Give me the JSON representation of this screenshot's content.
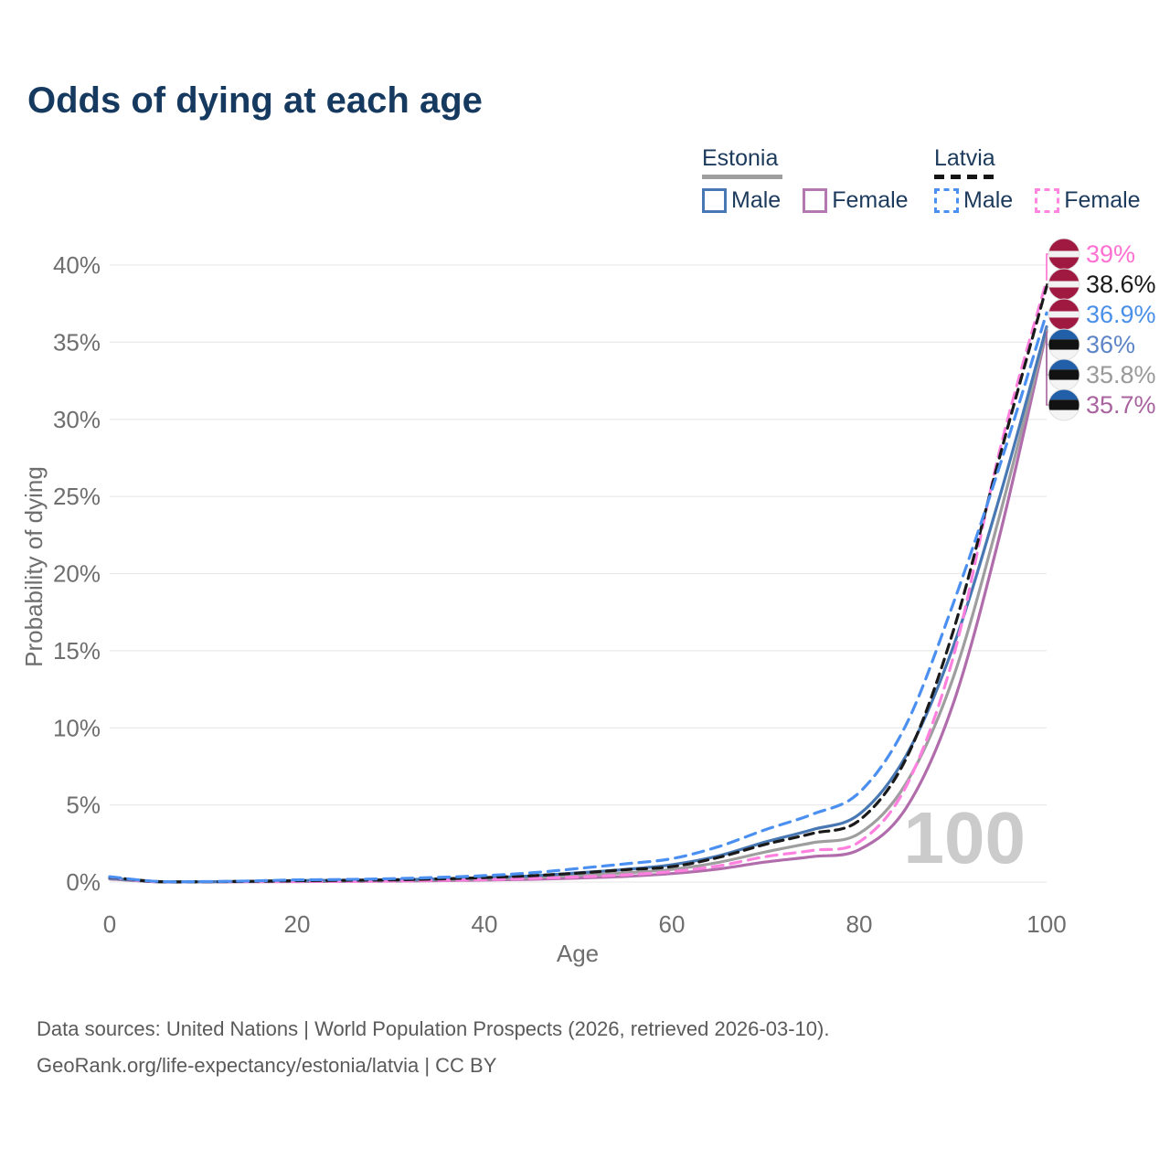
{
  "title": "Odds of dying at each age",
  "legend": {
    "groups": [
      {
        "country": "Estonia",
        "line_style": "solid",
        "line_color": "#9e9e9e",
        "items": [
          {
            "label": "Male",
            "color": "#4878b4"
          },
          {
            "label": "Female",
            "color": "#b478b0"
          }
        ]
      },
      {
        "country": "Latvia",
        "line_style": "dashed",
        "line_color": "#151515",
        "items": [
          {
            "label": "Male",
            "color": "#4a90f0"
          },
          {
            "label": "Female",
            "color": "#ff85e0"
          }
        ]
      }
    ]
  },
  "watermark_age": "100",
  "footer": {
    "line1": "Data sources: United Nations | World Population Prospects (2026, retrieved 2026-03-10).",
    "line2": "GeoRank.org/life-expectancy/estonia/latvia | CC BY"
  },
  "chart_data": {
    "type": "line",
    "title": "Odds of dying at each age",
    "xlabel": "Age",
    "ylabel": "Probability of dying",
    "xlim": [
      0,
      100
    ],
    "ylim_percent": [
      0,
      41
    ],
    "grid": true,
    "legend_position": "top-right",
    "x_ticks": [
      0,
      20,
      40,
      60,
      80,
      100
    ],
    "y_tick_percents": [
      0,
      5,
      10,
      15,
      20,
      25,
      30,
      35,
      40
    ],
    "ages": [
      0,
      5,
      10,
      15,
      20,
      25,
      30,
      35,
      40,
      45,
      50,
      55,
      60,
      65,
      70,
      75,
      80,
      85,
      90,
      95,
      100
    ],
    "series": [
      {
        "key": "latvia-female",
        "name": "Latvia Female",
        "country": "Latvia",
        "sex": "Female",
        "style": "dashed",
        "color": "#ff80df",
        "label_color": "#ff70d2",
        "flag": "latvia",
        "end_label": "39%",
        "end_value": 39.0,
        "values": [
          0.3,
          0.02,
          0.02,
          0.03,
          0.04,
          0.05,
          0.07,
          0.11,
          0.16,
          0.23,
          0.33,
          0.47,
          0.68,
          1.05,
          1.65,
          2.05,
          2.6,
          6.2,
          14.5,
          28.0,
          39.0
        ]
      },
      {
        "key": "latvia-total",
        "name": "Latvia",
        "country": "Latvia",
        "sex": "Both",
        "style": "dashed",
        "color": "#1a1a1a",
        "label_color": "#1a1a1a",
        "flag": "latvia",
        "end_label": "38.6%",
        "end_value": 38.6,
        "values": [
          0.32,
          0.03,
          0.02,
          0.05,
          0.09,
          0.11,
          0.14,
          0.2,
          0.29,
          0.41,
          0.58,
          0.8,
          1.0,
          1.6,
          2.45,
          3.15,
          4.0,
          8.0,
          16.2,
          27.6,
          38.6
        ]
      },
      {
        "key": "latvia-male",
        "name": "Latvia Male",
        "country": "Latvia",
        "sex": "Male",
        "style": "dashed",
        "color": "#4b90f0",
        "label_color": "#4a8fe8",
        "flag": "latvia",
        "end_label": "36.9%",
        "end_value": 36.9,
        "values": [
          0.35,
          0.04,
          0.03,
          0.07,
          0.14,
          0.17,
          0.22,
          0.3,
          0.42,
          0.6,
          0.88,
          1.18,
          1.52,
          2.3,
          3.4,
          4.4,
          5.8,
          10.2,
          18.0,
          27.0,
          36.9
        ]
      },
      {
        "key": "estonia-male",
        "name": "Estonia Male",
        "country": "Estonia",
        "sex": "Male",
        "style": "solid",
        "color": "#4878b4",
        "label_color": "#5c84c6",
        "flag": "estonia",
        "end_label": "36%",
        "end_value": 36.0,
        "values": [
          0.25,
          0.03,
          0.02,
          0.05,
          0.1,
          0.12,
          0.15,
          0.2,
          0.28,
          0.4,
          0.6,
          0.82,
          1.12,
          1.7,
          2.6,
          3.4,
          4.4,
          8.2,
          15.2,
          25.0,
          36.0
        ]
      },
      {
        "key": "estonia-total",
        "name": "Estonia",
        "country": "Estonia",
        "sex": "Both",
        "style": "solid",
        "color": "#9e9e9e",
        "label_color": "#9a9a9a",
        "flag": "estonia",
        "end_label": "35.8%",
        "end_value": 35.8,
        "values": [
          0.22,
          0.02,
          0.02,
          0.04,
          0.07,
          0.08,
          0.11,
          0.15,
          0.2,
          0.29,
          0.43,
          0.6,
          0.82,
          1.28,
          1.95,
          2.55,
          3.15,
          6.4,
          13.2,
          23.8,
          35.8
        ]
      },
      {
        "key": "estonia-female",
        "name": "Estonia Female",
        "country": "Estonia",
        "sex": "Female",
        "style": "solid",
        "color": "#b06cab",
        "label_color": "#a9639f",
        "flag": "estonia",
        "end_label": "35.7%",
        "end_value": 35.7,
        "values": [
          0.2,
          0.02,
          0.01,
          0.02,
          0.03,
          0.04,
          0.06,
          0.09,
          0.13,
          0.18,
          0.26,
          0.37,
          0.55,
          0.85,
          1.3,
          1.65,
          2.1,
          4.8,
          11.5,
          22.5,
          35.7
        ]
      }
    ],
    "flag_colors": {
      "latvia": {
        "red": "#a01940",
        "white": "#f2f2f2"
      },
      "estonia": {
        "blue": "#2160a8",
        "black": "#121212",
        "white": "#f4f4f4"
      }
    },
    "annotations": {
      "age_counter": "100"
    }
  }
}
